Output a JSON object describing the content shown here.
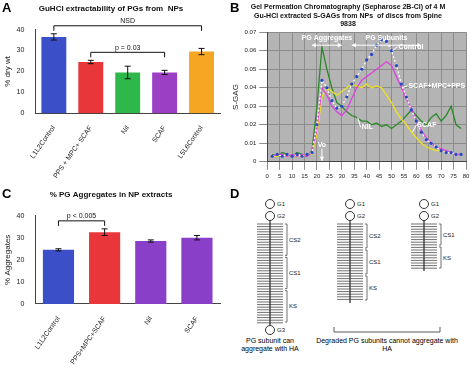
{
  "chart_data": [
    {
      "panel": "A",
      "type": "bar",
      "title": "GuHCl extractability of PGs from  NPs",
      "ylabel": "% dry wt",
      "categories": [
        "L1L2Control",
        "PPS + MPC+ SCAF",
        "Nil",
        "SCAF",
        "L5L6Control"
      ],
      "values": [
        36.5,
        24.5,
        19.5,
        19.5,
        29.5
      ],
      "errors": [
        1.5,
        0.8,
        3,
        1,
        1.5
      ],
      "colors": [
        "#3b4fc8",
        "#e8363a",
        "#2fb84a",
        "#9b3fc4",
        "#f5a623"
      ],
      "ylim": [
        0,
        40
      ],
      "yticks": [
        0,
        10,
        20,
        30,
        40
      ],
      "grid": false,
      "annotations": [
        {
          "text": "NSD",
          "between": [
            "L1L2Control",
            "L5L6Control"
          ]
        },
        {
          "text": "p = 0.03",
          "between": [
            "PPS + MPC+ SCAF",
            "SCAF"
          ]
        }
      ]
    },
    {
      "panel": "B",
      "type": "line",
      "title": "Gel Permeation Chromatography (Sepharose 2B-Cl) of 4 M Gu-HCl extracted S-GAGs from NPs  of discs from Spine 9838",
      "ylabel": "S-GAG",
      "x": [
        2,
        4,
        6,
        8,
        10,
        12,
        14,
        16,
        18,
        20,
        22,
        24,
        26,
        28,
        30,
        32,
        34,
        36,
        38,
        40,
        42,
        44,
        46,
        48,
        50,
        52,
        54,
        56,
        58,
        60,
        62,
        64,
        66,
        68,
        70,
        72,
        74,
        76,
        78
      ],
      "series": [
        {
          "name": "Control",
          "color": "#ffffff",
          "marker": "circle",
          "line_style": "dotted",
          "values": [
            0.003,
            0.004,
            0.003,
            0.004,
            0.003,
            0.004,
            0.003,
            0.004,
            0.005,
            0.02,
            0.044,
            0.04,
            0.033,
            0.029,
            0.03,
            0.035,
            0.042,
            0.046,
            0.05,
            0.055,
            0.058,
            0.063,
            0.066,
            0.065,
            0.06,
            0.052,
            0.042,
            0.035,
            0.028,
            0.022,
            0.016,
            0.012,
            0.01,
            0.008,
            0.006,
            0.005,
            0.005,
            0.004,
            0.004
          ]
        },
        {
          "name": "SCAF+MPC+PPS",
          "color": "#e040e0",
          "values": [
            0.003,
            0.004,
            0.004,
            0.003,
            0.004,
            0.003,
            0.004,
            0.003,
            0.005,
            0.018,
            0.04,
            0.036,
            0.03,
            0.027,
            0.025,
            0.028,
            0.034,
            0.04,
            0.044,
            0.046,
            0.048,
            0.05,
            0.052,
            0.054,
            0.052,
            0.046,
            0.04,
            0.034,
            0.029,
            0.022,
            0.017,
            0.013,
            0.01,
            0.008,
            0.007,
            0.006,
            0.005,
            0.004,
            0.004
          ]
        },
        {
          "name": "SCAF",
          "color": "#f0e020",
          "values": [
            0.003,
            0.003,
            0.004,
            0.003,
            0.004,
            0.003,
            0.003,
            0.004,
            0.004,
            0.015,
            0.035,
            0.04,
            0.038,
            0.036,
            0.038,
            0.04,
            0.042,
            0.041,
            0.04,
            0.042,
            0.04,
            0.041,
            0.04,
            0.036,
            0.032,
            0.027,
            0.023,
            0.02,
            0.016,
            0.013,
            0.01,
            0.008,
            0.007,
            0.006,
            0.006,
            0.005,
            0.005,
            0.004,
            0.004
          ]
        },
        {
          "name": "NIL",
          "color": "#2a8a2a",
          "values": [
            0.004,
            0.003,
            0.005,
            0.004,
            0.003,
            0.005,
            0.004,
            0.003,
            0.006,
            0.03,
            0.062,
            0.05,
            0.04,
            0.032,
            0.03,
            0.027,
            0.025,
            0.024,
            0.022,
            0.022,
            0.02,
            0.021,
            0.019,
            0.02,
            0.018,
            0.02,
            0.022,
            0.025,
            0.028,
            0.025,
            0.022,
            0.02,
            0.024,
            0.026,
            0.022,
            0.025,
            0.03,
            0.02,
            0.018
          ]
        }
      ],
      "xlim": [
        0,
        80
      ],
      "xticks": [
        0,
        5,
        10,
        15,
        20,
        25,
        30,
        35,
        40,
        45,
        50,
        55,
        60,
        65,
        70,
        75,
        80
      ],
      "ylim": [
        0,
        0.07
      ],
      "yticks": [
        0,
        0.01,
        0.02,
        0.03,
        0.04,
        0.05,
        0.06,
        0.07
      ],
      "grid": true,
      "regions": [
        {
          "text": "PG Aggregates",
          "x_range": [
            18,
            30
          ]
        },
        {
          "text": "PG Subunits",
          "x_range": [
            34,
            62
          ]
        }
      ],
      "markers": [
        {
          "text": "Vo",
          "x": 22
        }
      ]
    },
    {
      "panel": "C",
      "type": "bar",
      "title": "% PG Aggregates in NP extracts",
      "ylabel": "% Aggregates",
      "categories": [
        "L1L2Control",
        "PPS+MPC+SCAF",
        "Nil",
        "SCAF"
      ],
      "values": [
        24.5,
        32.5,
        28.5,
        30
      ],
      "errors": [
        0.5,
        1.5,
        0.5,
        1
      ],
      "colors": [
        "#3b4fc8",
        "#e8363a",
        "#8a3fc8",
        "#8a3fc8"
      ],
      "ylim": [
        0,
        40
      ],
      "yticks": [
        0,
        10,
        20,
        30,
        40
      ],
      "grid": false,
      "annotations": [
        {
          "text": "p < 0.005",
          "between": [
            "L1L2Control",
            "PPS+MPC+SCAF"
          ]
        }
      ]
    }
  ],
  "diagram": {
    "panel": "D",
    "structures": [
      {
        "top": [
          "G1",
          "G2"
        ],
        "segments": [
          "CS2",
          "CS1",
          "KS"
        ],
        "bottom": [
          "G3"
        ]
      },
      {
        "top": [
          "G1",
          "G2"
        ],
        "segments": [
          "CS2",
          "CS1",
          "KS"
        ]
      },
      {
        "top": [
          "G1",
          "G2"
        ],
        "segments": [
          "CS1",
          "KS"
        ]
      }
    ],
    "captions": [
      {
        "text": "PG subunit can aggregate with HA",
        "structures": [
          0
        ]
      },
      {
        "text": "Degraded PG subunits cannot aggregate with HA",
        "structures": [
          1,
          2
        ]
      }
    ]
  }
}
